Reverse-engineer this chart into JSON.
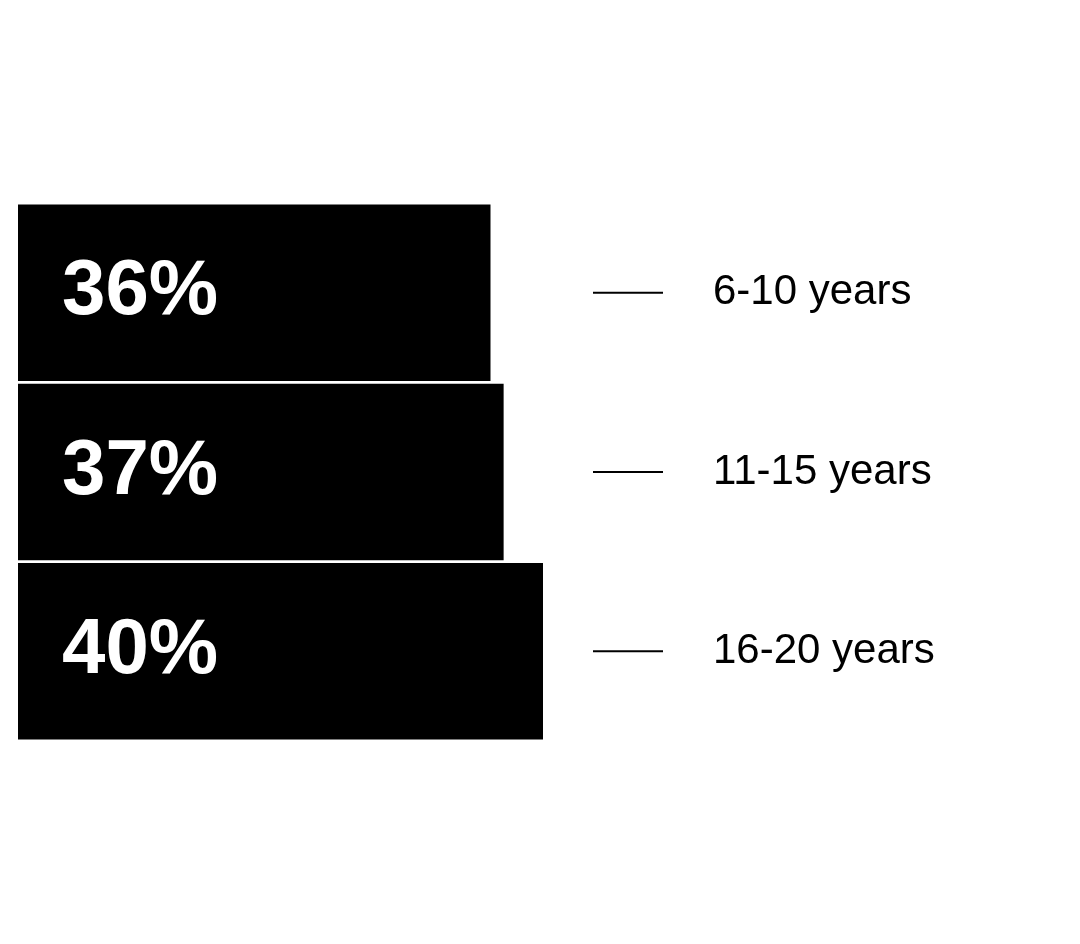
{
  "chart_data": {
    "type": "bar",
    "orientation": "horizontal",
    "categories": [
      "6-10 years",
      "11-15 years",
      "16-20 years"
    ],
    "values": [
      36,
      37,
      40
    ],
    "value_labels": [
      "36%",
      "37%",
      "40%"
    ],
    "color": "#000000",
    "grid": false,
    "legend": false
  }
}
